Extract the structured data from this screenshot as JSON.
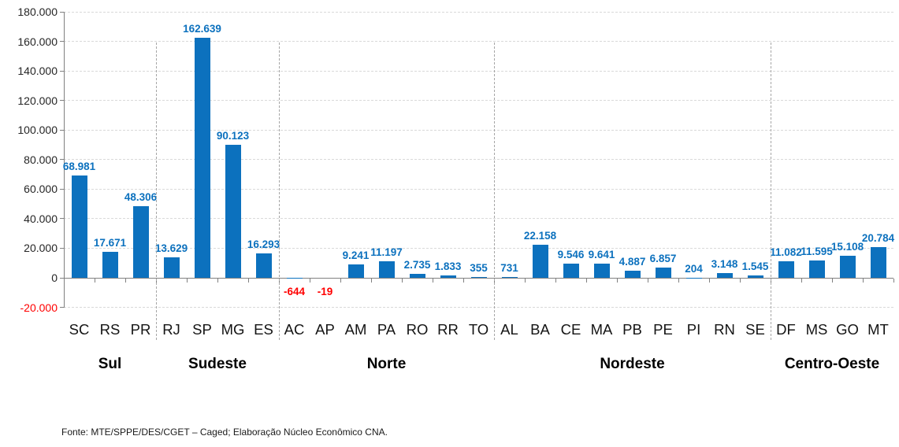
{
  "chart_data": {
    "type": "bar",
    "title": "",
    "xlabel": "",
    "ylabel": "",
    "categories": [
      "SC",
      "RS",
      "PR",
      "RJ",
      "SP",
      "MG",
      "ES",
      "AC",
      "AP",
      "AM",
      "PA",
      "RO",
      "RR",
      "TO",
      "AL",
      "BA",
      "CE",
      "MA",
      "PB",
      "PE",
      "PI",
      "RN",
      "SE",
      "DF",
      "MS",
      "GO",
      "MT"
    ],
    "values": [
      68981,
      17671,
      48306,
      13629,
      162639,
      90123,
      16293,
      -644,
      -19,
      9241,
      11197,
      2735,
      1833,
      355,
      731,
      22158,
      9546,
      9641,
      4887,
      6857,
      204,
      3148,
      1545,
      11082,
      11595,
      15108,
      20784
    ],
    "value_labels": [
      "68.981",
      "17.671",
      "48.306",
      "13.629",
      "162.639",
      "90.123",
      "16.293",
      "-644",
      "-19",
      "9.241",
      "11.197",
      "2.735",
      "1.833",
      "355",
      "731",
      "22.158",
      "9.546",
      "9.641",
      "4.887",
      "6.857",
      "204",
      "3.148",
      "1.545",
      "11.082",
      "11.595",
      "15.108",
      "20.784"
    ],
    "regions": [
      {
        "label": "Sul",
        "from": 0,
        "to": 2
      },
      {
        "label": "Sudeste",
        "from": 3,
        "to": 6
      },
      {
        "label": "Norte",
        "from": 7,
        "to": 13
      },
      {
        "label": "Nordeste",
        "from": 14,
        "to": 22
      },
      {
        "label": "Centro-Oeste",
        "from": 23,
        "to": 26
      }
    ],
    "y_ticks": [
      "180.000",
      "160.000",
      "140.000",
      "120.000",
      "100.000",
      "80.000",
      "60.000",
      "40.000",
      "20.000",
      "0",
      "-20.000"
    ],
    "ylim": [
      -20000,
      180000
    ],
    "grid": "horizontal dashed",
    "legend": "none",
    "colors": {
      "bar": "#0c71be",
      "positive_label": "#0c71be",
      "negative_label": "#ff0000",
      "axis": "#808080",
      "gridline": "#d9d9d9",
      "separator": "#a6a6a6",
      "tick_text": "#262626"
    }
  },
  "footer": {
    "source": "Fonte: MTE/SPPE/DES/CGET  – Caged; Elaboração Núcleo Econômico CNA."
  }
}
